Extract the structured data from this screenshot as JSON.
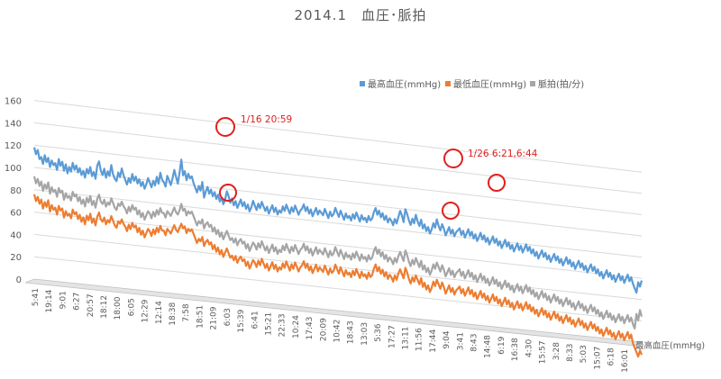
{
  "chart_data": {
    "type": "line",
    "title": "2014.1　血圧･脈拍",
    "x_axis_title": "最高血圧(mmHg)",
    "ylim": [
      0,
      160
    ],
    "y_ticks": [
      0,
      20,
      40,
      60,
      80,
      100,
      120,
      140,
      160
    ],
    "y_tick_labels": [
      "0",
      "20",
      "40",
      "60",
      "80",
      "100",
      "120",
      "140",
      "160"
    ],
    "grid": true,
    "legend_position": "top-right",
    "x_tick_labels": [
      "5:41",
      "19:14",
      "9:01",
      "6:27",
      "20:57",
      "18:12",
      "18:00",
      "6:05",
      "12:29",
      "12:14",
      "18:38",
      "7:58",
      "18:51",
      "21:09",
      "6:03",
      "15:39",
      "6:41",
      "15:21",
      "22:33",
      "10:24",
      "17:43",
      "20:09",
      "10:42",
      "18:43",
      "13:03",
      "5:36",
      "17:27",
      "13:11",
      "11:56",
      "17:44",
      "9:04",
      "3:41",
      "8:43",
      "14:48",
      "6:19",
      "16:38",
      "4:30",
      "15:57",
      "3:28",
      "8:33",
      "5:03",
      "15:07",
      "6:18",
      "16:01"
    ],
    "series": [
      {
        "name": "最高血圧(mmHg)",
        "color": "#5b9bd5",
        "values": [
          118,
          112,
          116,
          108,
          110,
          104,
          112,
          106,
          110,
          102,
          108,
          104,
          106,
          100,
          110,
          104,
          108,
          100,
          106,
          98,
          104,
          100,
          108,
          102,
          106,
          100,
          104,
          98,
          102,
          96,
          104,
          100,
          106,
          98,
          102,
          96,
          108,
          112,
          104,
          100,
          106,
          98,
          104,
          100,
          110,
          102,
          98,
          96,
          104,
          100,
          108,
          102,
          98,
          94,
          100,
          96,
          104,
          98,
          102,
          96,
          100,
          94,
          98,
          92,
          96,
          102,
          98,
          94,
          100,
          96,
          104,
          98,
          108,
          102,
          100,
          96,
          106,
          102,
          98,
          104,
          112,
          106,
          100,
          110,
          122,
          108,
          112,
          104,
          110,
          106,
          108,
          102,
          98,
          94,
          100,
          96,
          104,
          90,
          96,
          100,
          94,
          98,
          92,
          96,
          90,
          94,
          88,
          92,
          86,
          90,
          98,
          94,
          88,
          92,
          86,
          90,
          84,
          88,
          92,
          86,
          90,
          84,
          88,
          82,
          86,
          92,
          88,
          84,
          90,
          86,
          92,
          88,
          84,
          88,
          82,
          86,
          90,
          84,
          88,
          82,
          86,
          84,
          90,
          86,
          92,
          88,
          84,
          90,
          86,
          92,
          88,
          84,
          88,
          90,
          94,
          88,
          92,
          86,
          90,
          84,
          88,
          92,
          86,
          90,
          88,
          86,
          92,
          88,
          84,
          90,
          86,
          88,
          94,
          90,
          86,
          92,
          88,
          84,
          90,
          86,
          88,
          84,
          90,
          86,
          92,
          88,
          84,
          90,
          86,
          88,
          84,
          90,
          86,
          88,
          94,
          98,
          92,
          96,
          90,
          94,
          88,
          92,
          86,
          90,
          88,
          84,
          90,
          86,
          92,
          98,
          94,
          88,
          100,
          96,
          90,
          86,
          92,
          88,
          96,
          90,
          86,
          92,
          84,
          88,
          82,
          86,
          80,
          84,
          90,
          86,
          94,
          88,
          84,
          90,
          86,
          80,
          84,
          88,
          82,
          86,
          80,
          84,
          86,
          88,
          82,
          86,
          80,
          84,
          88,
          82,
          86,
          80,
          84,
          78,
          82,
          86,
          80,
          84,
          78,
          82,
          76,
          80,
          84,
          78,
          82,
          76,
          80,
          74,
          78,
          82,
          76,
          80,
          74,
          78,
          72,
          76,
          80,
          74,
          78,
          72,
          76,
          80,
          74,
          78,
          72,
          76,
          70,
          74,
          68,
          72,
          76,
          70,
          74,
          68,
          72,
          66,
          70,
          74,
          68,
          72,
          66,
          70,
          64,
          68,
          72,
          66,
          70,
          64,
          68,
          62,
          66,
          70,
          64,
          68,
          62,
          66,
          60,
          64,
          68,
          62,
          66,
          60,
          64,
          58,
          62,
          56,
          60,
          64,
          58,
          62,
          56,
          60,
          54,
          58,
          62,
          56,
          60,
          54,
          58,
          62,
          56,
          60,
          54,
          50,
          46,
          56,
          52,
          58
        ]
      },
      {
        "name": "最低血圧(mmHg)",
        "color": "#ed7d31",
        "values": [
          76,
          70,
          74,
          68,
          72,
          64,
          70,
          66,
          72,
          62,
          68,
          64,
          66,
          60,
          68,
          64,
          66,
          58,
          64,
          60,
          62,
          58,
          66,
          62,
          64,
          58,
          62,
          56,
          60,
          54,
          62,
          58,
          64,
          56,
          60,
          54,
          62,
          66,
          60,
          58,
          62,
          56,
          60,
          58,
          64,
          60,
          56,
          54,
          60,
          58,
          62,
          58,
          56,
          52,
          58,
          54,
          60,
          56,
          58,
          52,
          56,
          50,
          54,
          48,
          52,
          56,
          54,
          50,
          56,
          52,
          58,
          54,
          60,
          56,
          56,
          52,
          58,
          56,
          54,
          58,
          62,
          58,
          56,
          60,
          64,
          60,
          62,
          56,
          60,
          58,
          60,
          56,
          52,
          48,
          52,
          50,
          54,
          46,
          50,
          52,
          48,
          50,
          44,
          48,
          42,
          46,
          40,
          44,
          38,
          42,
          46,
          42,
          38,
          40,
          36,
          40,
          34,
          38,
          40,
          36,
          38,
          32,
          36,
          30,
          34,
          38,
          36,
          32,
          38,
          34,
          40,
          36,
          32,
          36,
          30,
          34,
          38,
          32,
          36,
          30,
          34,
          32,
          38,
          34,
          40,
          36,
          32,
          38,
          34,
          40,
          36,
          32,
          36,
          38,
          42,
          36,
          40,
          34,
          38,
          32,
          36,
          40,
          34,
          38,
          36,
          34,
          40,
          36,
          32,
          38,
          34,
          36,
          42,
          38,
          34,
          40,
          36,
          32,
          38,
          34,
          36,
          32,
          38,
          34,
          40,
          36,
          32,
          38,
          34,
          36,
          32,
          38,
          34,
          36,
          42,
          46,
          40,
          44,
          38,
          42,
          36,
          40,
          34,
          38,
          36,
          32,
          38,
          34,
          40,
          44,
          40,
          36,
          46,
          42,
          36,
          32,
          38,
          34,
          40,
          36,
          32,
          38,
          30,
          34,
          28,
          32,
          26,
          30,
          36,
          32,
          38,
          34,
          30,
          36,
          32,
          26,
          30,
          34,
          28,
          32,
          26,
          30,
          32,
          34,
          28,
          32,
          26,
          30,
          34,
          28,
          32,
          26,
          30,
          24,
          28,
          32,
          26,
          30,
          24,
          28,
          22,
          26,
          30,
          24,
          28,
          22,
          26,
          20,
          24,
          28,
          22,
          26,
          20,
          24,
          18,
          22,
          26,
          20,
          24,
          18,
          22,
          26,
          20,
          24,
          18,
          22,
          16,
          20,
          14,
          18,
          22,
          16,
          20,
          14,
          18,
          12,
          16,
          20,
          14,
          18,
          12,
          16,
          10,
          14,
          18,
          12,
          16,
          10,
          14,
          8,
          12,
          16,
          10,
          14,
          8,
          12,
          6,
          10,
          14,
          8,
          12,
          6,
          10,
          4,
          8,
          2,
          6,
          10,
          4,
          8,
          2,
          6,
          0,
          4,
          8,
          2,
          6,
          0,
          4,
          8,
          2,
          6,
          -2,
          -6,
          -10,
          -14,
          -8,
          -12
        ]
      },
      {
        "name": "脈拍(拍/分)",
        "color": "#a5a5a5",
        "values": [
          92,
          86,
          90,
          84,
          88,
          80,
          86,
          82,
          88,
          78,
          84,
          80,
          82,
          76,
          84,
          80,
          82,
          74,
          80,
          76,
          78,
          74,
          82,
          78,
          80,
          74,
          78,
          72,
          76,
          70,
          78,
          74,
          80,
          72,
          76,
          70,
          78,
          82,
          76,
          74,
          78,
          72,
          76,
          74,
          80,
          76,
          72,
          70,
          76,
          74,
          78,
          74,
          72,
          68,
          74,
          70,
          76,
          72,
          74,
          68,
          72,
          66,
          70,
          64,
          68,
          72,
          70,
          66,
          72,
          68,
          74,
          70,
          76,
          72,
          72,
          68,
          74,
          72,
          70,
          74,
          78,
          74,
          72,
          76,
          82,
          76,
          78,
          72,
          76,
          74,
          76,
          72,
          68,
          64,
          68,
          66,
          70,
          62,
          66,
          68,
          64,
          66,
          60,
          64,
          58,
          62,
          56,
          60,
          54,
          58,
          62,
          58,
          54,
          56,
          52,
          56,
          50,
          54,
          56,
          52,
          54,
          48,
          52,
          46,
          50,
          54,
          52,
          48,
          54,
          50,
          56,
          52,
          48,
          52,
          46,
          50,
          54,
          48,
          52,
          46,
          50,
          48,
          54,
          50,
          56,
          52,
          48,
          54,
          50,
          56,
          52,
          48,
          52,
          54,
          58,
          52,
          56,
          50,
          54,
          48,
          52,
          56,
          50,
          54,
          52,
          50,
          56,
          52,
          48,
          54,
          50,
          52,
          58,
          54,
          50,
          56,
          52,
          48,
          54,
          50,
          52,
          48,
          54,
          50,
          56,
          52,
          48,
          54,
          50,
          52,
          48,
          54,
          50,
          52,
          58,
          62,
          56,
          60,
          54,
          58,
          52,
          56,
          50,
          54,
          52,
          48,
          54,
          50,
          56,
          60,
          56,
          52,
          62,
          58,
          52,
          48,
          54,
          50,
          56,
          52,
          48,
          54,
          46,
          50,
          44,
          48,
          42,
          46,
          52,
          48,
          54,
          50,
          46,
          52,
          48,
          42,
          46,
          50,
          44,
          48,
          42,
          46,
          48,
          50,
          44,
          48,
          42,
          46,
          50,
          44,
          48,
          42,
          46,
          40,
          44,
          48,
          42,
          46,
          40,
          44,
          38,
          42,
          46,
          40,
          44,
          38,
          42,
          36,
          40,
          44,
          38,
          42,
          36,
          40,
          34,
          38,
          42,
          36,
          40,
          34,
          38,
          42,
          36,
          40,
          34,
          38,
          32,
          36,
          30,
          34,
          38,
          32,
          36,
          30,
          34,
          28,
          32,
          36,
          30,
          34,
          28,
          32,
          26,
          30,
          34,
          28,
          32,
          26,
          30,
          24,
          28,
          32,
          26,
          30,
          24,
          28,
          22,
          26,
          30,
          24,
          28,
          22,
          26,
          20,
          24,
          18,
          22,
          26,
          20,
          24,
          18,
          22,
          16,
          20,
          24,
          18,
          22,
          16,
          20,
          24,
          18,
          22,
          16,
          12,
          26,
          20,
          30,
          24
        ]
      }
    ],
    "annotations": [
      {
        "text": "1/16 20:59"
      },
      {
        "text": "1/26 6:21,6:44"
      }
    ]
  }
}
